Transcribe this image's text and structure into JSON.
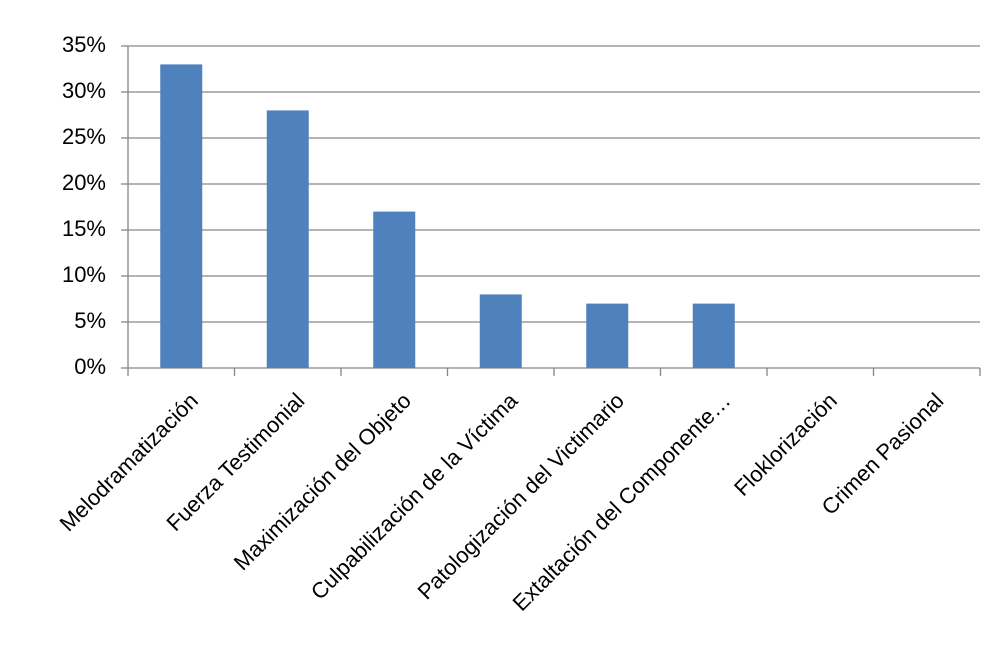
{
  "chart_data": {
    "type": "bar",
    "categories": [
      "Melodramatización",
      "Fuerza Testimonial",
      "Maximización del Objeto",
      "Culpabilización de la Víctima",
      "Patologización del Victimario",
      "Extaltación del Componente…",
      "Floklorización",
      "Crimen Pasional"
    ],
    "values": [
      33,
      28,
      17,
      8,
      7,
      7,
      0,
      0
    ],
    "color": "#4f81bd",
    "ylim": [
      0,
      35
    ],
    "yticks": [
      {
        "value": 0,
        "label": "0%"
      },
      {
        "value": 5,
        "label": "5%"
      },
      {
        "value": 10,
        "label": "10%"
      },
      {
        "value": 15,
        "label": "15%"
      },
      {
        "value": 20,
        "label": "20%"
      },
      {
        "value": 25,
        "label": "25%"
      },
      {
        "value": 30,
        "label": "30%"
      },
      {
        "value": 35,
        "label": "35%"
      }
    ],
    "grid": true
  }
}
